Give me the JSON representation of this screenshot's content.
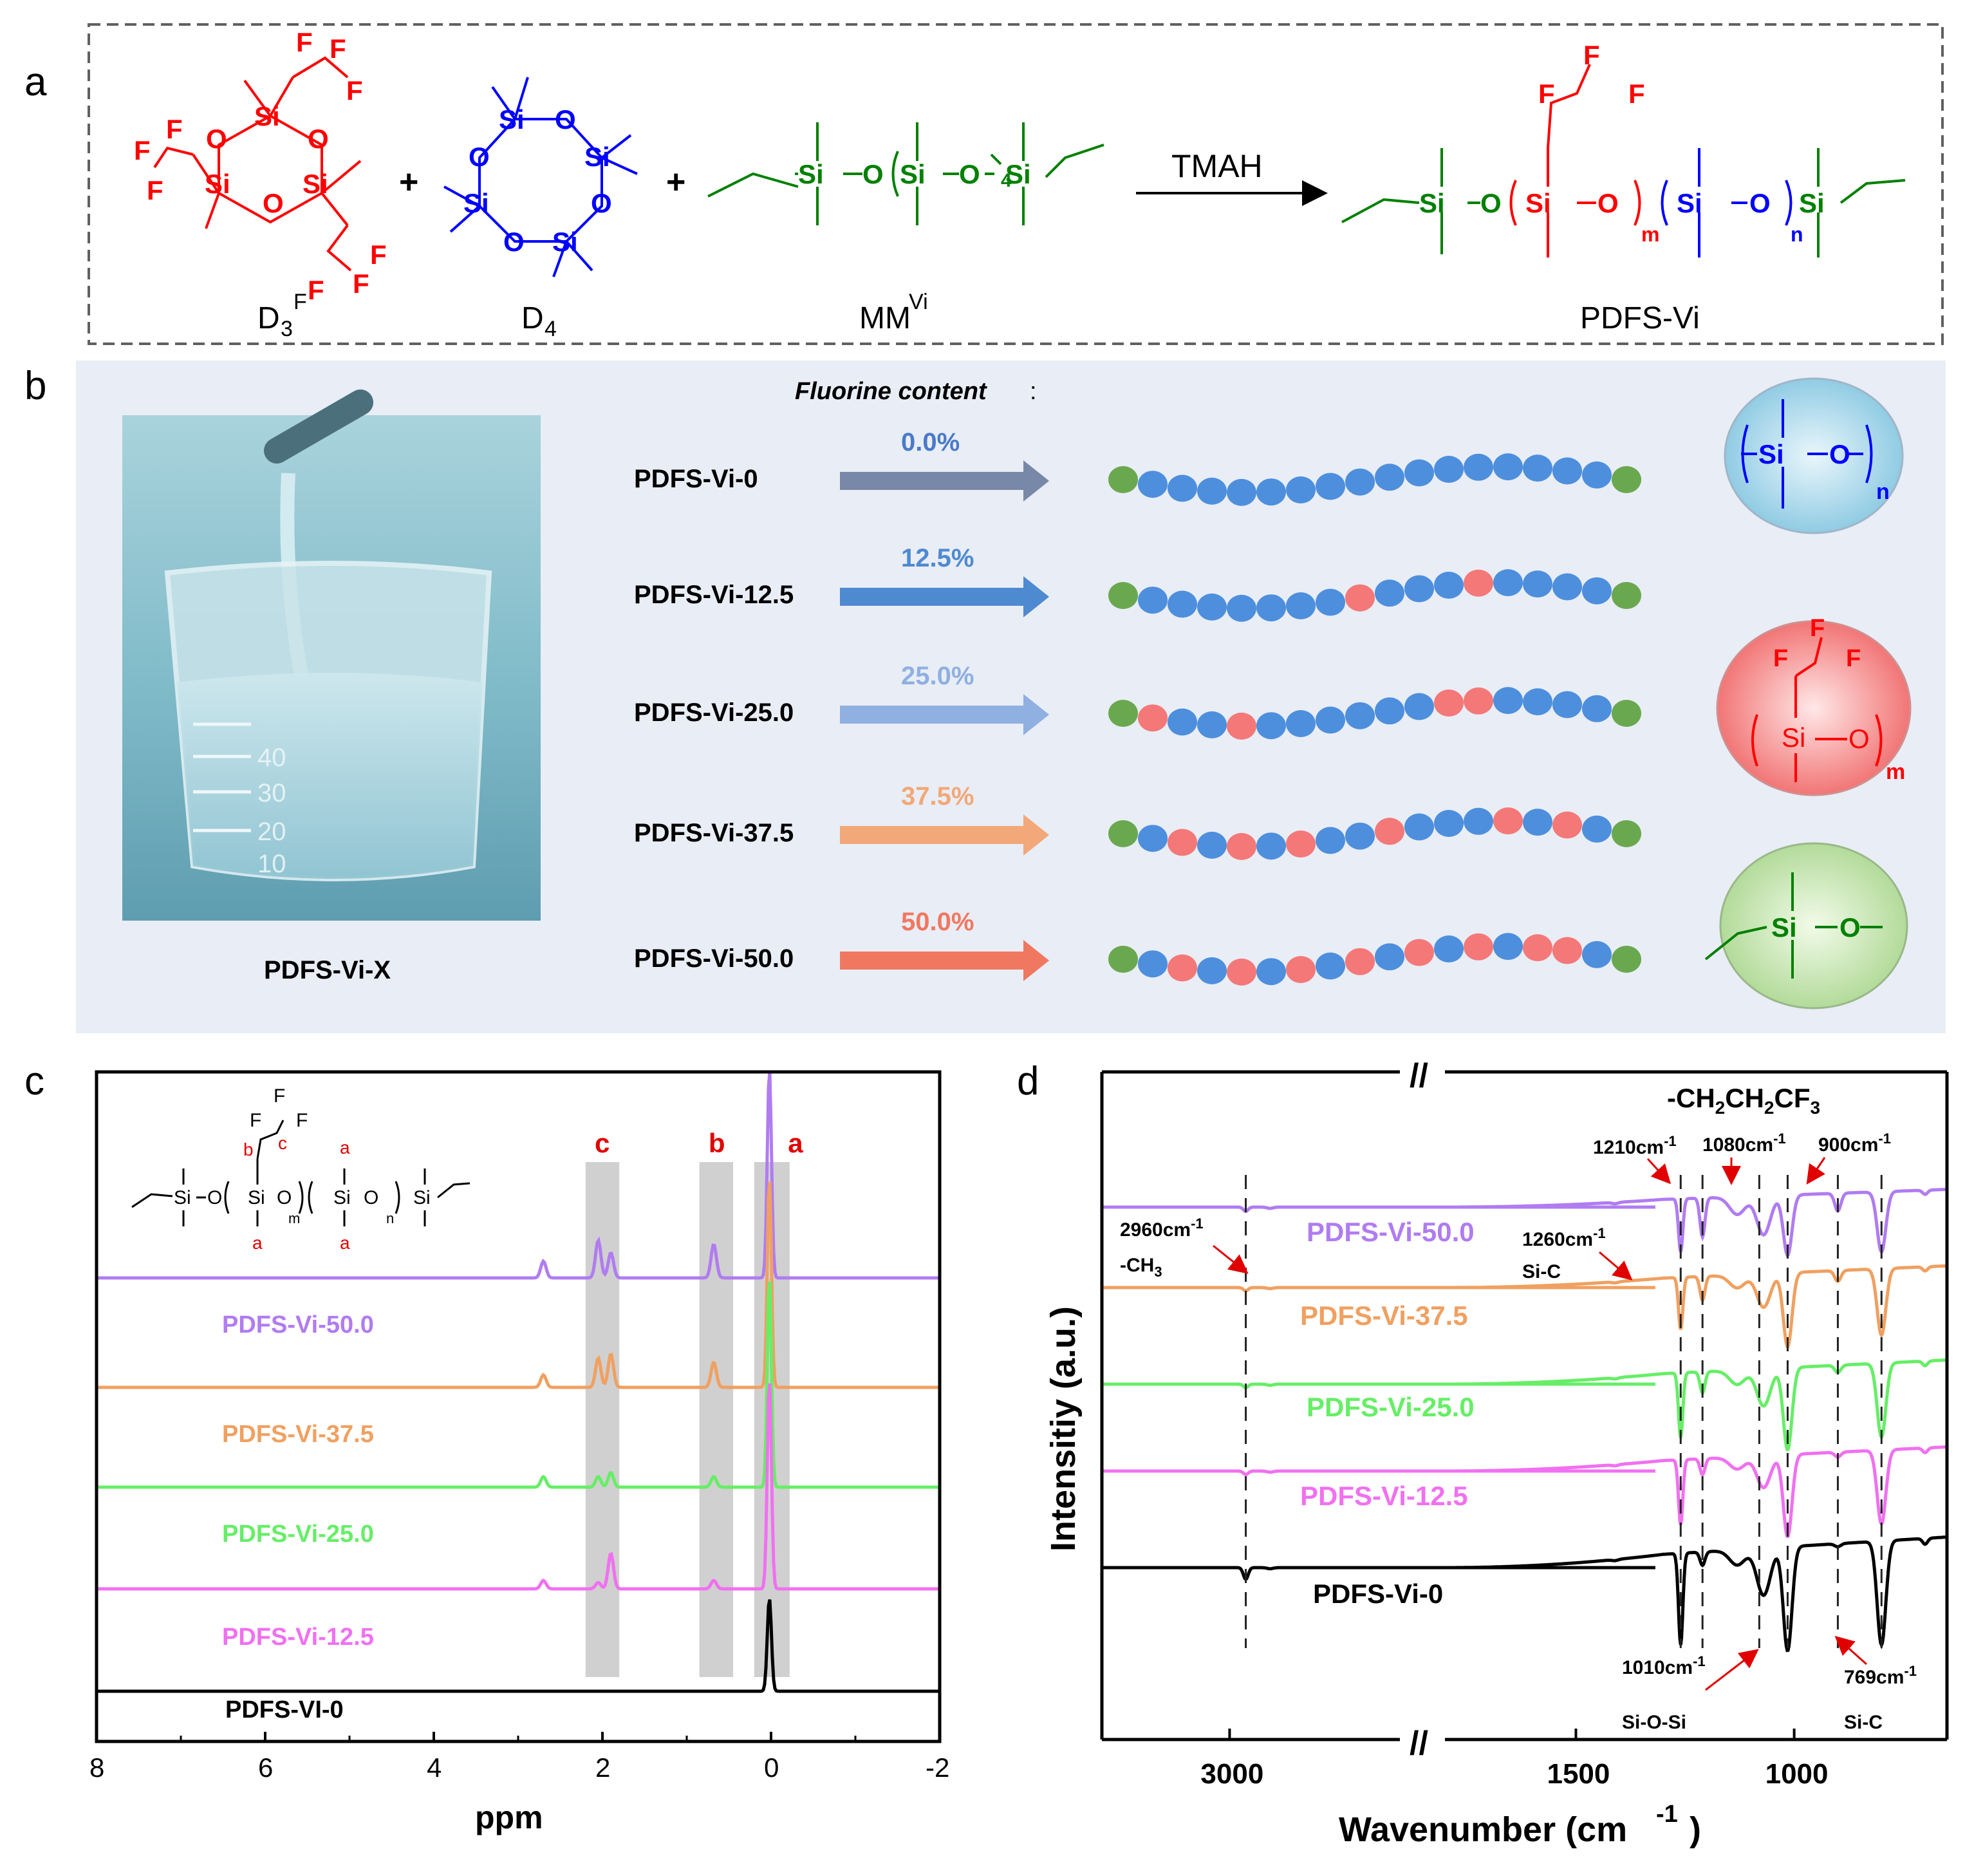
{
  "panel_a": {
    "letter": "a",
    "reactants": [
      {
        "label": "D",
        "sub": "3",
        "sup": "F",
        "color": "#ff0000"
      },
      {
        "label": "D",
        "sub": "4",
        "sup": "",
        "color": "#0000ff"
      },
      {
        "label": "MM",
        "sub": "",
        "sup": "Vi",
        "color": "#008000"
      }
    ],
    "plus": "+",
    "catalyst": "TMAH",
    "product": "PDFS-Vi",
    "atoms": {
      "si": "Si",
      "o": "O",
      "f": "F"
    },
    "subscripts": {
      "four": "4",
      "m": "m",
      "n": "n"
    }
  },
  "panel_b": {
    "letter": "b",
    "photo_caption": "PDFS-Vi-X",
    "beaker_marks": [
      "40",
      "30",
      "20",
      "10"
    ],
    "heading": "Fluorine content",
    "heading_colon": ":",
    "rows": [
      {
        "name": "PDFS-Vi-0",
        "content": "0.0%",
        "color": "#7888a8",
        "text_color": "#4a7ac8",
        "chain": "GBBBBBBBBBBBBBBBBG"
      },
      {
        "name": "PDFS-Vi-12.5",
        "content": "12.5%",
        "color": "#4e8ad0",
        "text_color": "#4e8ad0",
        "chain": "GBBBBBBBRBBBRBBBBG"
      },
      {
        "name": "PDFS-Vi-25.0",
        "content": "25.0%",
        "color": "#8fb0e0",
        "text_color": "#8fb0e0",
        "chain": "GRBBRBBBBBBRRBBBBG"
      },
      {
        "name": "PDFS-Vi-37.5",
        "content": "37.5%",
        "color": "#f2a878",
        "text_color": "#f2a878",
        "chain": "GBRBRBRBBRBBBRBRBG"
      },
      {
        "name": "PDFS-Vi-50.0",
        "content": "50.0%",
        "color": "#f07860",
        "text_color": "#f07860",
        "chain": "GBRBRBRBRBRBRBRRBG"
      }
    ],
    "legend_units": [
      {
        "subscript": "n"
      },
      {
        "subscript": "m"
      },
      {
        "subscript": ""
      }
    ],
    "colors": {
      "blue_bead": "#4d8fdd",
      "red_bead": "#f47878",
      "green_bead": "#6aa84f"
    }
  },
  "panel_c": {
    "letter": "c",
    "chart_data": {
      "type": "line",
      "title": "",
      "xlabel": "ppm",
      "ylabel": "",
      "xlim": [
        8,
        -2
      ],
      "x_ticks": [
        "8",
        "6",
        "4",
        "2",
        "0",
        "-2"
      ],
      "series": [
        {
          "name": "PDFS-Vi-50.0",
          "color": "#b07cf0",
          "label_color": "#b07cf0",
          "peaks": [
            [
              2.7,
              0.08
            ],
            [
              2.05,
              0.18
            ],
            [
              1.9,
              0.12
            ],
            [
              0.68,
              0.16
            ],
            [
              0.02,
              1.0
            ]
          ]
        },
        {
          "name": "PDFS-Vi-37.5",
          "color": "#f0a060",
          "label_color": "#f0a060",
          "peaks": [
            [
              2.7,
              0.06
            ],
            [
              2.05,
              0.14
            ],
            [
              1.9,
              0.16
            ],
            [
              0.68,
              0.12
            ],
            [
              0.02,
              1.0
            ]
          ]
        },
        {
          "name": "PDFS-Vi-25.0",
          "color": "#66ee66",
          "label_color": "#66ee66",
          "peaks": [
            [
              2.7,
              0.05
            ],
            [
              2.05,
              0.05
            ],
            [
              1.9,
              0.07
            ],
            [
              0.68,
              0.05
            ],
            [
              0.02,
              1.0
            ]
          ]
        },
        {
          "name": "PDFS-Vi-12.5",
          "color": "#f070f0",
          "label_color": "#f070f0",
          "peaks": [
            [
              2.7,
              0.04
            ],
            [
              2.05,
              0.03
            ],
            [
              1.9,
              0.17
            ],
            [
              0.68,
              0.04
            ],
            [
              0.02,
              1.0
            ]
          ]
        },
        {
          "name": "PDFS-VI-0",
          "color": "#000000",
          "label_color": "#000000",
          "peaks": [
            [
              0.02,
              1.0
            ]
          ]
        }
      ],
      "shaded_regions": [
        {
          "label": "c",
          "from": 2.2,
          "to": 1.8
        },
        {
          "label": "b",
          "from": 0.85,
          "to": 0.45
        },
        {
          "label": "a",
          "from": 0.2,
          "to": -0.22
        }
      ]
    },
    "structure_labels": {
      "a": "a",
      "b": "b",
      "c": "c",
      "m": "m",
      "n": "n"
    }
  },
  "panel_d": {
    "letter": "d",
    "chart_data": {
      "type": "line",
      "xlabel": "Wavenumber (cm",
      "xlabel_sup": "-1",
      "xlabel_end": ")",
      "ylabel": "Intensitiy (a.u.)",
      "x_ticks": [
        "3000",
        "1500",
        "1000"
      ],
      "axis_break": "//",
      "series": [
        {
          "name": "PDFS-Vi-50.0",
          "color": "#b07cf0"
        },
        {
          "name": "PDFS-Vi-37.5",
          "color": "#f0a060"
        },
        {
          "name": "PDFS-Vi-25.0",
          "color": "#66ee66"
        },
        {
          "name": "PDFS-Vi-12.5",
          "color": "#f070f0"
        },
        {
          "name": "PDFS-Vi-0",
          "color": "#000000"
        }
      ],
      "annotations": [
        {
          "text": "2960cm",
          "sup": "-1",
          "line2": "-CH",
          "line2_sub": "3"
        },
        {
          "text": "1260cm",
          "sup": "-1",
          "line2": "Si-C"
        },
        {
          "text": "1210cm",
          "sup": "-1"
        },
        {
          "text": "1080cm",
          "sup": "-1"
        },
        {
          "text": "900cm",
          "sup": "-1"
        },
        {
          "text": "1010cm",
          "sup": "-1",
          "line2": "Si-O-Si"
        },
        {
          "text": "769cm",
          "sup": "-1",
          "line2": "Si-C"
        }
      ],
      "group_label": {
        "a": "-CH",
        "s1": "2",
        "b": "CH",
        "s2": "2",
        "c": "CF",
        "s3": "3"
      }
    }
  }
}
